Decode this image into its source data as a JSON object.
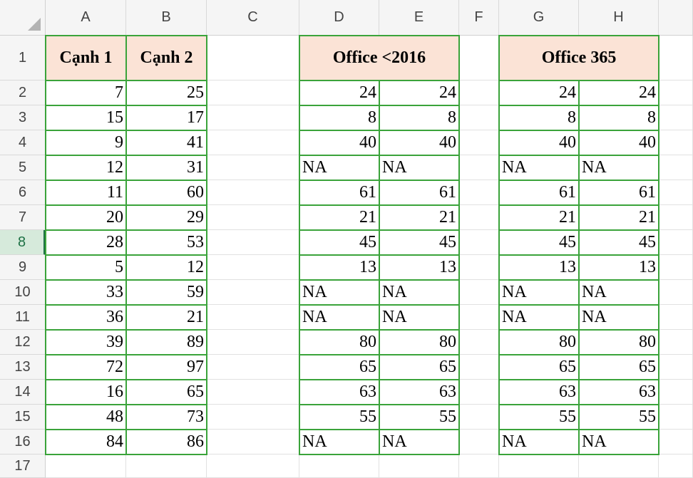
{
  "columns": [
    "A",
    "B",
    "C",
    "D",
    "E",
    "F",
    "G",
    "H"
  ],
  "rows": [
    "1",
    "2",
    "3",
    "4",
    "5",
    "6",
    "7",
    "8",
    "9",
    "10",
    "11",
    "12",
    "13",
    "14",
    "15",
    "16",
    "17"
  ],
  "selected_row": "8",
  "table1": {
    "headers": [
      "Cạnh 1",
      "Cạnh 2"
    ],
    "a": [
      "7",
      "15",
      "9",
      "12",
      "11",
      "20",
      "28",
      "5",
      "33",
      "36",
      "39",
      "72",
      "16",
      "48",
      "84"
    ],
    "b": [
      "25",
      "17",
      "41",
      "31",
      "60",
      "29",
      "53",
      "12",
      "59",
      "21",
      "89",
      "97",
      "65",
      "73",
      "86"
    ]
  },
  "table2": {
    "header": "Office <2016",
    "d": [
      "24",
      "8",
      "40",
      "NA",
      "61",
      "21",
      "45",
      "13",
      "NA",
      "NA",
      "80",
      "65",
      "63",
      "55",
      "NA"
    ],
    "e": [
      "24",
      "8",
      "40",
      "NA",
      "61",
      "21",
      "45",
      "13",
      "NA",
      "NA",
      "80",
      "65",
      "63",
      "55",
      "NA"
    ]
  },
  "table3": {
    "header": "Office 365",
    "g": [
      "24",
      "8",
      "40",
      "NA",
      "61",
      "21",
      "45",
      "13",
      "NA",
      "NA",
      "80",
      "65",
      "63",
      "55",
      "NA"
    ],
    "h": [
      "24",
      "8",
      "40",
      "NA",
      "61",
      "21",
      "45",
      "13",
      "NA",
      "NA",
      "80",
      "65",
      "63",
      "55",
      "NA"
    ]
  },
  "colors": {
    "header_fill": "#fbe3d6",
    "border": "#3aa33a",
    "selected_row": "#1e7145"
  }
}
